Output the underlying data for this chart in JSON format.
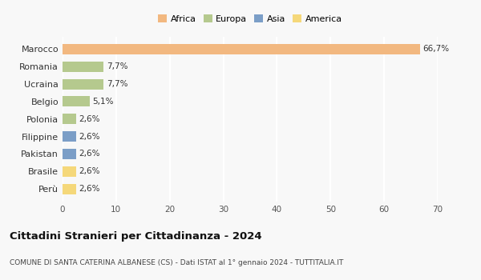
{
  "categories": [
    "Marocco",
    "Romania",
    "Ucraina",
    "Belgio",
    "Polonia",
    "Filippine",
    "Pakistan",
    "Brasile",
    "Perù"
  ],
  "values": [
    66.7,
    7.7,
    7.7,
    5.1,
    2.6,
    2.6,
    2.6,
    2.6,
    2.6
  ],
  "labels": [
    "66,7%",
    "7,7%",
    "7,7%",
    "5,1%",
    "2,6%",
    "2,6%",
    "2,6%",
    "2,6%",
    "2,6%"
  ],
  "colors": [
    "#f2b880",
    "#b5c98e",
    "#b5c98e",
    "#b5c98e",
    "#b5c98e",
    "#7b9ec7",
    "#7b9ec7",
    "#f5d87a",
    "#f5d87a"
  ],
  "legend": [
    {
      "label": "Africa",
      "color": "#f2b880"
    },
    {
      "label": "Europa",
      "color": "#b5c98e"
    },
    {
      "label": "Asia",
      "color": "#7b9ec7"
    },
    {
      "label": "America",
      "color": "#f5d87a"
    }
  ],
  "xlim": [
    0,
    70
  ],
  "xticks": [
    0,
    10,
    20,
    30,
    40,
    50,
    60,
    70
  ],
  "title": "Cittadini Stranieri per Cittadinanza - 2024",
  "subtitle": "COMUNE DI SANTA CATERINA ALBANESE (CS) - Dati ISTAT al 1° gennaio 2024 - TUTTITALIA.IT",
  "background_color": "#f8f8f8",
  "grid_color": "#ffffff",
  "bar_height": 0.6
}
